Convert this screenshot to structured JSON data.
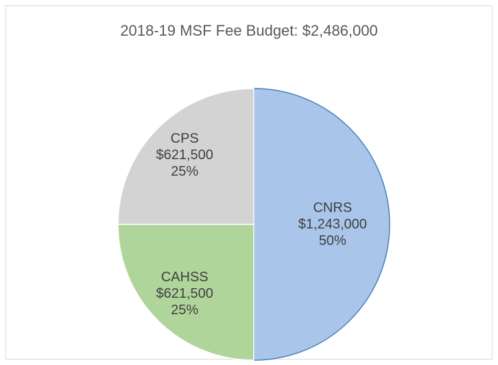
{
  "chart_data": {
    "type": "pie",
    "title": "2018-19 MSF Fee Budget: $2,486,000",
    "categories": [
      "CNRS",
      "CAHSS",
      "CPS"
    ],
    "values": [
      1243000,
      621500,
      621500
    ],
    "value_labels": [
      "$1,243,000",
      "$621,500",
      "$621,500"
    ],
    "percent_labels": [
      "50%",
      "25%",
      "25%"
    ],
    "colors": [
      "#a9c5e9",
      "#b0d59a",
      "#d3d3d3"
    ]
  }
}
